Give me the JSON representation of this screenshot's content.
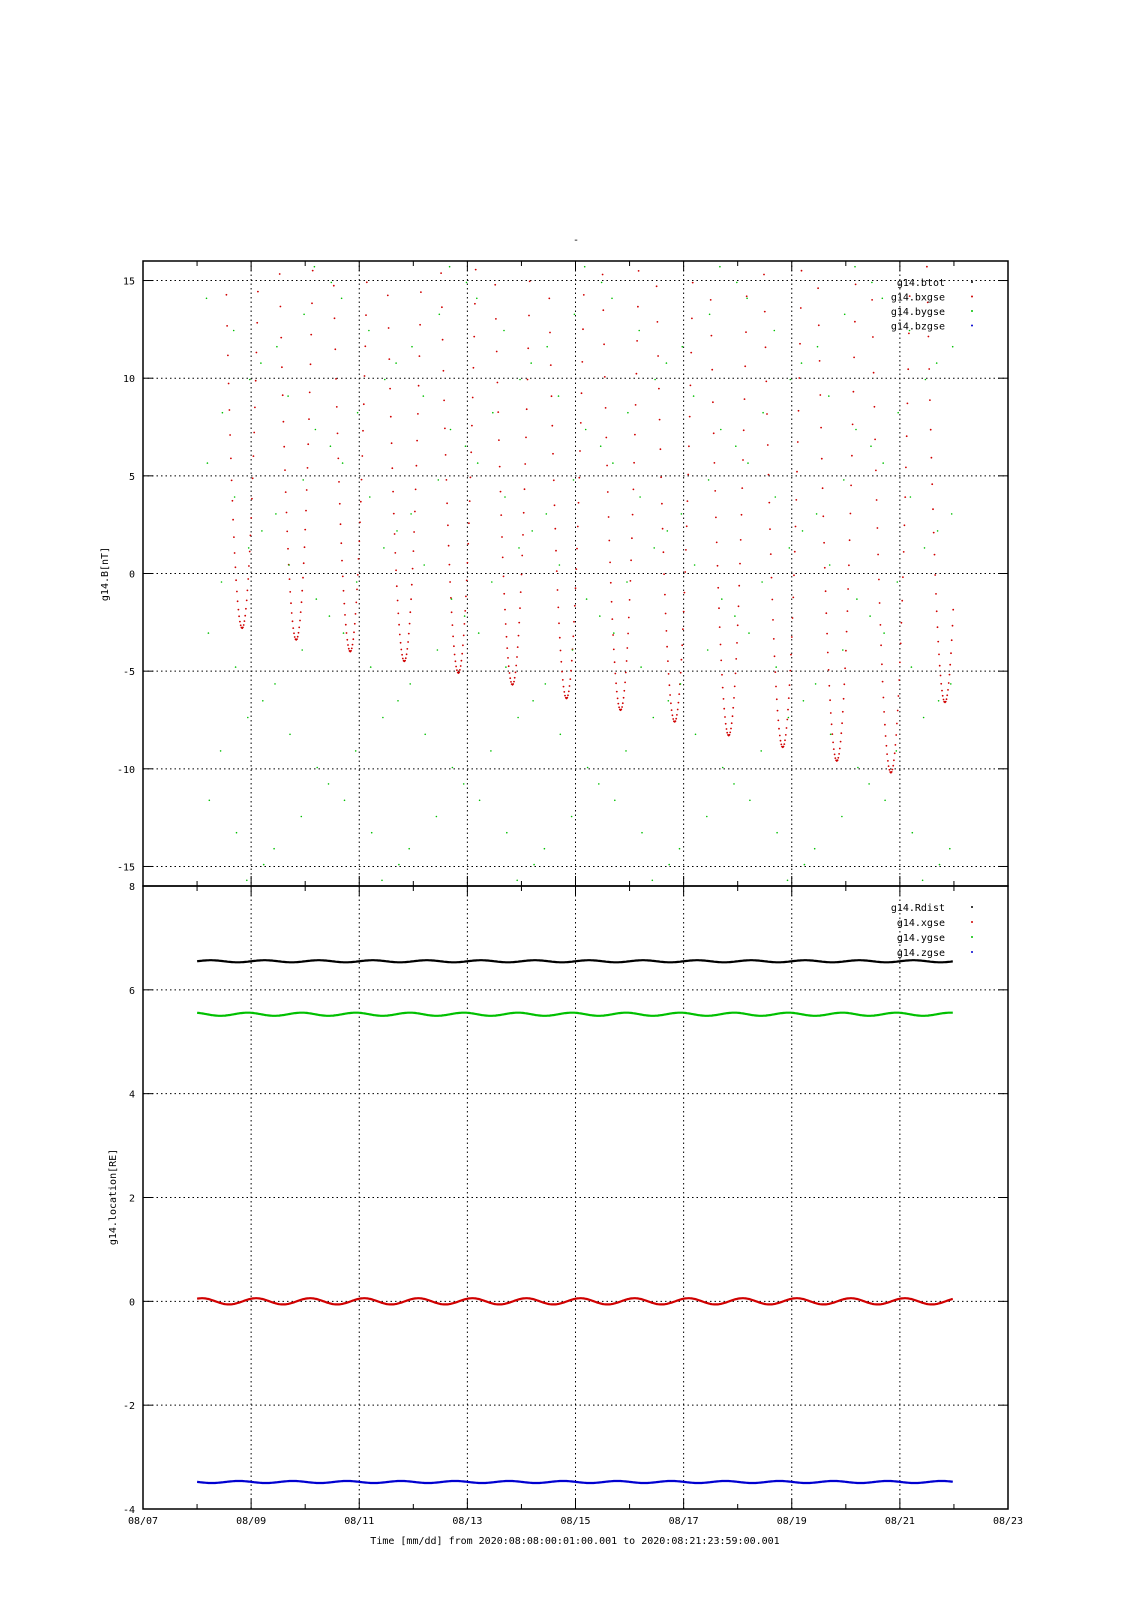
{
  "page": {
    "top_title": "-"
  },
  "chart_data": [
    {
      "type": "scatter",
      "ylabel": "g14.B[nT]",
      "xlim": [
        "2020-08-07",
        "2020-08-23"
      ],
      "ylim": [
        -16,
        16
      ],
      "yticks": [
        -15,
        -10,
        -5,
        0,
        5,
        10,
        15
      ],
      "grid": true,
      "legend_position": "top-right",
      "series": [
        {
          "name": "g14.btot",
          "color": "#000000",
          "description_values": "mostly above 16 nT (off scale)",
          "daily_min": []
        },
        {
          "name": "g14.bxgse",
          "color": "#d00000",
          "x": [
            "2020-08-08 20:00",
            "2020-08-09 20:00",
            "2020-08-10 20:00",
            "2020-08-11 20:00",
            "2020-08-12 20:00",
            "2020-08-13 20:00",
            "2020-08-14 20:00",
            "2020-08-15 20:00",
            "2020-08-16 20:00",
            "2020-08-17 20:00",
            "2020-08-18 20:00",
            "2020-08-19 20:00",
            "2020-08-20 20:00",
            "2020-08-21 20:00"
          ],
          "daily_min": [
            -2.8,
            -3.4,
            -4.0,
            -4.5,
            -5.1,
            -5.7,
            -6.4,
            -7.0,
            -7.6,
            -8.3,
            -8.9,
            -9.6,
            -10.2,
            -6.6
          ],
          "start_value": 13.5,
          "end_value": 5.5
        },
        {
          "name": "g14.bygse",
          "color": "#00c000",
          "description_values": "oscillates across the full range, steep swings twice per day"
        },
        {
          "name": "g14.bzgse",
          "color": "#0000d0",
          "description_values": "off scale"
        }
      ]
    },
    {
      "type": "line",
      "xlabel": "Time [mm/dd]  from 2020:08:08:00:01:00.001  to  2020:08:21:23:59:00.001",
      "ylabel": "g14.location[RE]",
      "xlim": [
        "2020-08-07",
        "2020-08-23"
      ],
      "ylim": [
        -4,
        8
      ],
      "yticks": [
        -4,
        -2,
        0,
        2,
        4,
        6,
        8
      ],
      "xticks": [
        "08/07",
        "08/09",
        "08/11",
        "08/13",
        "08/15",
        "08/17",
        "08/19",
        "08/21",
        "08/23"
      ],
      "grid": true,
      "legend_position": "top-right",
      "x_start": "2020-08-08 00:01",
      "x_end": "2020-08-21 23:59",
      "series": [
        {
          "name": "g14.Rdist",
          "color": "#000000",
          "mean": 6.55,
          "amplitude": 0.02
        },
        {
          "name": "g14.xgse",
          "color": "#d00000",
          "mean": 0.0,
          "amplitude": 0.06
        },
        {
          "name": "g14.ygse",
          "color": "#00c000",
          "mean": 5.53,
          "amplitude": 0.03
        },
        {
          "name": "g14.zgse",
          "color": "#0000d0",
          "mean": -3.48,
          "amplitude": 0.02
        }
      ]
    }
  ]
}
